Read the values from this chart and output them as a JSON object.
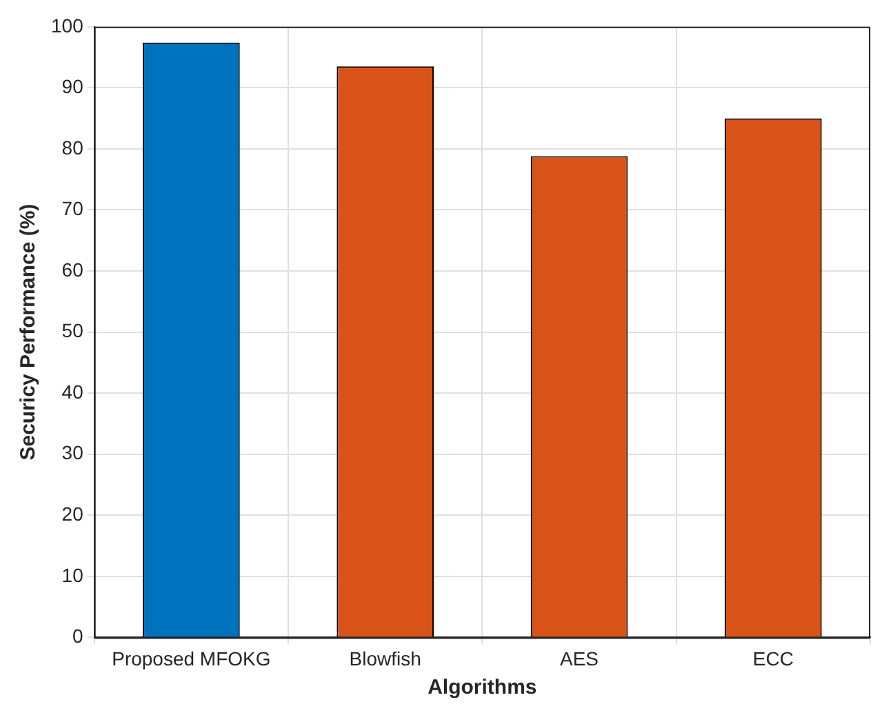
{
  "chart_data": {
    "type": "bar",
    "xlabel": "Algorithms",
    "ylabel": "Securicy Performance (%)",
    "categories": [
      "Proposed MFOKG",
      "Blowfish",
      "AES",
      "ECC"
    ],
    "values": [
      97.4,
      93.5,
      78.8,
      85
    ],
    "colors": [
      "#0072bd",
      "#d95319",
      "#d95319",
      "#d95319"
    ],
    "ylim": [
      0,
      100
    ],
    "yticks": [
      0,
      10,
      20,
      30,
      40,
      50,
      60,
      70,
      80,
      90,
      100
    ],
    "grid": true,
    "legend": false
  }
}
